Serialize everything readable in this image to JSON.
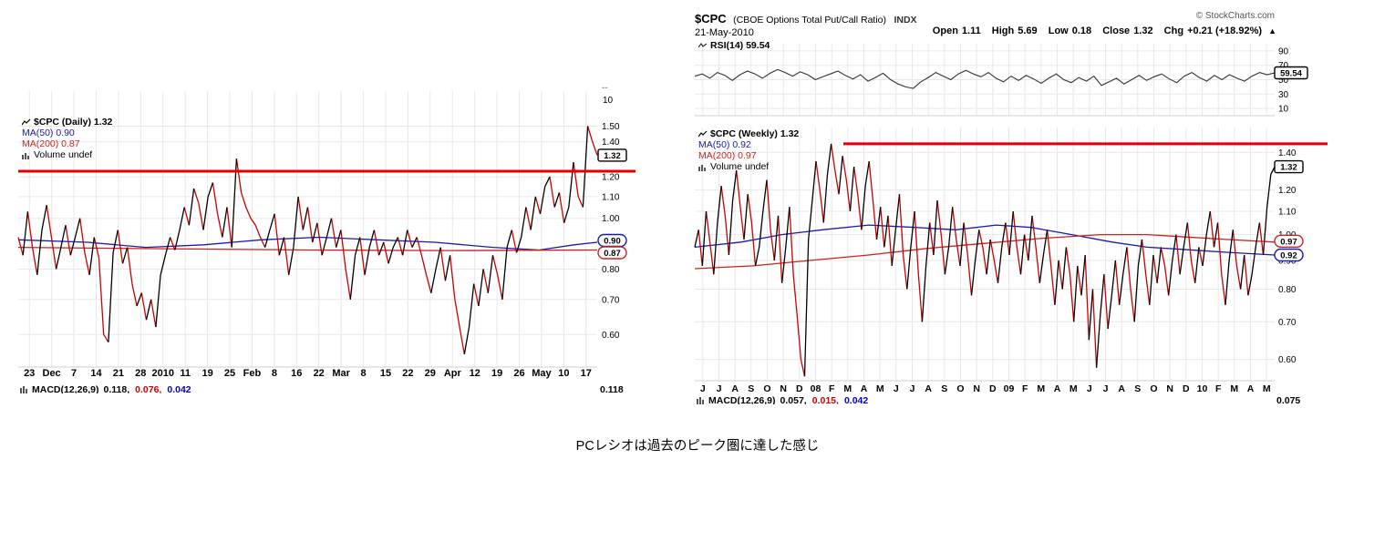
{
  "caption": "PCレシオは過去のピーク圏に達した感じ",
  "daily_chart": {
    "legend": {
      "title": "$CPC (Daily) 1.32",
      "ma50": "MA(50) 0.90",
      "ma200": "MA(200) 0.87",
      "volume": "Volume undef"
    },
    "macd": {
      "label": "MACD(12,26,9)",
      "v1": "0.118,",
      "v2": "0.076,",
      "v3": "0.042",
      "axis_value": "0.118"
    },
    "axis_artifacts": {
      "dash": "--",
      "ten": "10"
    }
  },
  "weekly_chart": {
    "header": {
      "symbol": "$CPC",
      "name": "(CBOE Options Total Put/Call Ratio)",
      "exchange": "INDX",
      "date": "21-May-2010",
      "copyright": "© StockCharts.com"
    },
    "quote": {
      "open_label": "Open",
      "open_value": "1.11",
      "high_label": "High",
      "high_value": "5.69",
      "low_label": "Low",
      "low_value": "0.18",
      "close_label": "Close",
      "close_value": "1.32",
      "chg_label": "Chg",
      "chg_value": "+0.21 (+18.92%)",
      "arrow": "▲"
    },
    "rsi_legend": "RSI(14) 59.54",
    "legend": {
      "title": "$CPC (Weekly) 1.32",
      "ma50": "MA(50) 0.92",
      "ma200": "MA(200) 0.97",
      "volume": "Volume undef"
    },
    "macd": {
      "label": "MACD(12,26,9)",
      "v1": "0.057,",
      "v2": "0.015,",
      "v3": "0.042",
      "axis_value": "0.075"
    }
  },
  "chart_data": [
    {
      "id": "cpc-daily",
      "type": "line",
      "title": "$CPC (Daily) 1.32",
      "timeframe": "Daily",
      "scale": "log",
      "ylim": [
        0.52,
        1.75
      ],
      "y_ticks": [
        1.5,
        1.4,
        1.2,
        1.1,
        1.0,
        0.8,
        0.7,
        0.6
      ],
      "axis_boxes": [
        {
          "value": 1.32,
          "label": "1.32",
          "style": "last"
        },
        {
          "value": 0.9,
          "label": "0.90",
          "style": "ma50"
        },
        {
          "value": 0.87,
          "label": "0.87",
          "style": "ma200"
        }
      ],
      "resistance": {
        "value": 1.23,
        "color": "#e40000"
      },
      "x_labels": [
        "23",
        "Dec",
        "7",
        "14",
        "21",
        "28",
        "2010",
        "11",
        "19",
        "25",
        "Feb",
        "8",
        "16",
        "22",
        "Mar",
        "8",
        "15",
        "22",
        "29",
        "Apr",
        "12",
        "19",
        "26",
        "May",
        "10",
        "17"
      ],
      "series": [
        {
          "name": "$CPC",
          "type": "updown-line",
          "up_color": "#000000",
          "down_color": "#cc0000",
          "values": [
            0.92,
            0.85,
            1.03,
            0.88,
            0.78,
            0.95,
            1.06,
            0.92,
            0.8,
            0.88,
            0.97,
            0.85,
            0.92,
            1.0,
            0.86,
            0.78,
            0.92,
            0.84,
            0.6,
            0.58,
            0.86,
            0.95,
            0.82,
            0.88,
            0.75,
            0.68,
            0.72,
            0.64,
            0.7,
            0.62,
            0.78,
            0.85,
            0.92,
            0.87,
            0.95,
            1.05,
            0.97,
            1.14,
            1.07,
            0.95,
            1.1,
            1.17,
            1.02,
            0.92,
            1.05,
            0.88,
            1.3,
            1.12,
            1.05,
            1.0,
            0.97,
            0.92,
            0.88,
            0.95,
            1.02,
            0.85,
            0.92,
            0.78,
            0.88,
            1.1,
            0.95,
            1.05,
            0.9,
            0.98,
            0.85,
            0.92,
            1.0,
            0.88,
            0.95,
            0.8,
            0.7,
            0.85,
            0.92,
            0.78,
            0.88,
            0.95,
            0.85,
            0.9,
            0.82,
            0.88,
            0.92,
            0.85,
            0.95,
            0.88,
            0.92,
            0.85,
            0.78,
            0.72,
            0.8,
            0.88,
            0.76,
            0.85,
            0.7,
            0.62,
            0.55,
            0.62,
            0.75,
            0.68,
            0.8,
            0.72,
            0.85,
            0.78,
            0.7,
            0.88,
            0.95,
            0.86,
            0.92,
            1.05,
            0.95,
            1.1,
            1.02,
            1.15,
            1.2,
            1.05,
            1.12,
            0.98,
            1.05,
            1.28,
            1.1,
            1.05,
            1.5,
            1.4,
            1.32
          ]
        },
        {
          "name": "MA(50)",
          "color": "#1a1aad",
          "points": [
            [
              0,
              0.91
            ],
            [
              0.12,
              0.9
            ],
            [
              0.22,
              0.88
            ],
            [
              0.32,
              0.89
            ],
            [
              0.42,
              0.91
            ],
            [
              0.52,
              0.92
            ],
            [
              0.62,
              0.91
            ],
            [
              0.72,
              0.9
            ],
            [
              0.82,
              0.88
            ],
            [
              0.9,
              0.87
            ],
            [
              0.96,
              0.89
            ],
            [
              1,
              0.9
            ]
          ]
        },
        {
          "name": "MA(200)",
          "color": "#cc2222",
          "points": [
            [
              0,
              0.88
            ],
            [
              0.25,
              0.875
            ],
            [
              0.5,
              0.87
            ],
            [
              0.75,
              0.868
            ],
            [
              1,
              0.87
            ]
          ]
        }
      ]
    },
    {
      "id": "cpc-weekly",
      "type": "line",
      "title": "$CPC (Weekly) 1.32",
      "timeframe": "Weekly",
      "scale": "log",
      "ylim": [
        0.55,
        1.55
      ],
      "y_ticks": [
        1.4,
        1.2,
        1.1,
        1.0,
        0.9,
        0.8,
        0.7,
        0.6
      ],
      "axis_boxes": [
        {
          "value": 1.32,
          "label": "1.32",
          "style": "last"
        },
        {
          "value": 0.97,
          "label": "0.97",
          "style": "ma200"
        },
        {
          "value": 0.92,
          "label": "0.92",
          "style": "ma50"
        }
      ],
      "resistance": {
        "value": 1.45,
        "color": "#e40000"
      },
      "x_labels": [
        "J",
        "J",
        "A",
        "S",
        "O",
        "N",
        "D",
        "08",
        "F",
        "M",
        "A",
        "M",
        "J",
        "J",
        "A",
        "S",
        "O",
        "N",
        "D",
        "09",
        "F",
        "M",
        "A",
        "M",
        "J",
        "J",
        "A",
        "S",
        "O",
        "N",
        "D",
        "10",
        "F",
        "M",
        "A",
        "M"
      ],
      "rsi_panel": {
        "label": "RSI(14)",
        "last": 59.54,
        "y_ticks": [
          90,
          70,
          50,
          30,
          10
        ],
        "values": [
          55,
          58,
          52,
          60,
          56,
          49,
          57,
          62,
          58,
          52,
          59,
          64,
          60,
          55,
          61,
          57,
          50,
          54,
          58,
          62,
          56,
          51,
          57,
          48,
          53,
          59,
          50,
          44,
          40,
          38,
          47,
          53,
          60,
          55,
          50,
          58,
          63,
          58,
          54,
          60,
          52,
          47,
          55,
          49,
          56,
          51,
          45,
          52,
          58,
          50,
          46,
          53,
          48,
          55,
          42,
          47,
          52,
          44,
          50,
          56,
          49,
          54,
          58,
          51,
          46,
          55,
          60,
          53,
          48,
          56,
          50,
          57,
          52,
          48,
          55,
          60,
          57,
          59.54
        ]
      },
      "series": [
        {
          "name": "$CPC",
          "type": "updown-line",
          "up_color": "#000000",
          "down_color": "#cc0000",
          "values": [
            0.95,
            1.02,
            0.88,
            1.1,
            0.97,
            0.85,
            1.05,
            1.22,
            1.08,
            0.92,
            1.15,
            1.3,
            1.12,
            0.98,
            1.18,
            1.05,
            0.88,
            0.95,
            1.1,
            1.25,
            1.02,
            0.9,
            1.08,
            0.82,
            0.95,
            1.12,
            0.85,
            0.72,
            0.6,
            0.56,
            0.98,
            1.15,
            1.35,
            1.2,
            1.05,
            1.28,
            1.45,
            1.3,
            1.18,
            1.38,
            1.25,
            1.1,
            1.32,
            1.18,
            1.02,
            1.22,
            1.35,
            1.15,
            0.98,
            1.12,
            0.95,
            1.08,
            0.88,
            1.02,
            1.18,
            0.92,
            0.8,
            0.95,
            1.1,
            0.85,
            0.7,
            0.88,
            1.05,
            0.92,
            1.15,
            1.0,
            0.85,
            0.95,
            1.12,
            0.98,
            0.88,
            1.05,
            0.92,
            0.78,
            0.9,
            1.02,
            0.95,
            0.85,
            0.98,
            0.9,
            0.82,
            0.95,
            1.05,
            0.92,
            1.1,
            0.95,
            0.85,
            1.0,
            0.9,
            1.08,
            0.95,
            0.82,
            0.92,
            1.02,
            0.88,
            0.75,
            0.9,
            0.8,
            0.95,
            0.85,
            0.7,
            0.88,
            0.78,
            0.92,
            0.65,
            0.8,
            0.58,
            0.72,
            0.85,
            0.68,
            0.78,
            0.9,
            0.75,
            0.85,
            0.95,
            0.8,
            0.7,
            0.88,
            0.98,
            0.85,
            0.75,
            0.92,
            0.82,
            0.95,
            0.88,
            0.78,
            0.9,
            1.0,
            0.85,
            0.95,
            1.05,
            0.9,
            0.82,
            0.95,
            0.88,
            1.0,
            1.1,
            0.95,
            1.05,
            0.85,
            0.75,
            0.9,
            1.02,
            0.88,
            0.8,
            0.92,
            0.78,
            0.85,
            0.95,
            1.05,
            0.92,
            1.12,
            1.28,
            1.32
          ]
        },
        {
          "name": "MA(50)",
          "color": "#1a1aad",
          "points": [
            [
              0,
              0.95
            ],
            [
              0.08,
              0.97
            ],
            [
              0.15,
              1.0
            ],
            [
              0.22,
              1.02
            ],
            [
              0.3,
              1.04
            ],
            [
              0.38,
              1.03
            ],
            [
              0.45,
              1.02
            ],
            [
              0.52,
              1.04
            ],
            [
              0.58,
              1.03
            ],
            [
              0.65,
              1.0
            ],
            [
              0.72,
              0.97
            ],
            [
              0.78,
              0.95
            ],
            [
              0.85,
              0.94
            ],
            [
              0.92,
              0.93
            ],
            [
              1,
              0.92
            ]
          ]
        },
        {
          "name": "MA(200)",
          "color": "#cc2222",
          "points": [
            [
              0,
              0.87
            ],
            [
              0.1,
              0.88
            ],
            [
              0.2,
              0.9
            ],
            [
              0.3,
              0.92
            ],
            [
              0.4,
              0.945
            ],
            [
              0.5,
              0.965
            ],
            [
              0.6,
              0.985
            ],
            [
              0.7,
              1.0
            ],
            [
              0.78,
              1.0
            ],
            [
              0.85,
              0.99
            ],
            [
              0.92,
              0.98
            ],
            [
              1,
              0.97
            ]
          ]
        }
      ]
    }
  ]
}
